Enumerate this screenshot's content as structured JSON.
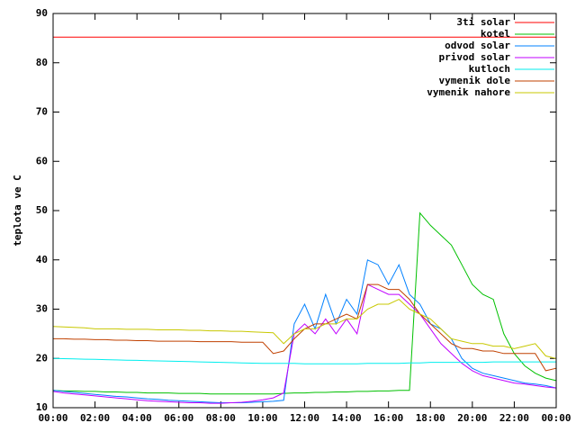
{
  "chart_data": {
    "type": "line",
    "ylabel": "teplota ve C",
    "ylim": [
      10,
      90
    ],
    "yticks": [
      10,
      20,
      30,
      40,
      50,
      60,
      70,
      80,
      90
    ],
    "xlim": [
      0,
      24
    ],
    "xticks": [
      {
        "value": 0,
        "label": "00:00"
      },
      {
        "value": 2,
        "label": "02:00"
      },
      {
        "value": 4,
        "label": "04:00"
      },
      {
        "value": 6,
        "label": "06:00"
      },
      {
        "value": 8,
        "label": "08:00"
      },
      {
        "value": 10,
        "label": "10:00"
      },
      {
        "value": 12,
        "label": "12:00"
      },
      {
        "value": 14,
        "label": "14:00"
      },
      {
        "value": 16,
        "label": "16:00"
      },
      {
        "value": 18,
        "label": "18:00"
      },
      {
        "value": 20,
        "label": "20:00"
      },
      {
        "value": 22,
        "label": "22:00"
      },
      {
        "value": 24,
        "label": "00:00"
      }
    ],
    "legend": "top-right",
    "x": [
      0,
      0.5,
      1,
      1.5,
      2,
      2.5,
      3,
      3.5,
      4,
      4.5,
      5,
      5.5,
      6,
      6.5,
      7,
      7.5,
      8,
      8.5,
      9,
      9.5,
      10,
      10.5,
      11,
      11.5,
      12,
      12.5,
      13,
      13.5,
      14,
      14.5,
      15,
      15.5,
      16,
      16.5,
      17,
      17.5,
      18,
      18.5,
      19,
      19.5,
      20,
      20.5,
      21,
      21.5,
      22,
      22.5,
      23,
      23.5,
      24
    ],
    "series": [
      {
        "name": "3ti solar",
        "color": "#ff0000",
        "values": [
          85.2,
          85.2,
          85.2,
          85.2,
          85.2,
          85.2,
          85.2,
          85.2,
          85.2,
          85.2,
          85.2,
          85.2,
          85.2,
          85.2,
          85.2,
          85.2,
          85.2,
          85.2,
          85.2,
          85.2,
          85.2,
          85.2,
          85.2,
          85.2,
          85.2,
          85.2,
          85.2,
          85.2,
          85.2,
          85.2,
          85.2,
          85.2,
          85.2,
          85.2,
          85.2,
          85.2,
          85.2,
          85.2,
          85.2,
          85.2,
          85.2,
          85.2,
          85.2,
          85.2,
          85.2,
          85.2,
          85.2,
          85.2,
          85.2
        ]
      },
      {
        "name": "kotel",
        "color": "#00c000",
        "values": [
          13.5,
          13.4,
          13.4,
          13.3,
          13.3,
          13.2,
          13.2,
          13.1,
          13.1,
          13.0,
          13.0,
          13.0,
          12.9,
          12.9,
          12.9,
          12.8,
          12.8,
          12.8,
          12.8,
          12.8,
          12.8,
          12.8,
          12.9,
          13.0,
          13.0,
          13.1,
          13.1,
          13.2,
          13.2,
          13.3,
          13.3,
          13.4,
          13.4,
          13.5,
          13.5,
          49.5,
          47,
          45,
          43,
          39,
          35,
          33,
          32,
          25,
          21,
          18.5,
          17,
          16,
          15.5
        ]
      },
      {
        "name": "odvod solar",
        "color": "#0080ff",
        "values": [
          13.5,
          13.3,
          13.1,
          12.9,
          12.7,
          12.5,
          12.3,
          12.2,
          12.0,
          11.8,
          11.7,
          11.5,
          11.4,
          11.3,
          11.2,
          11.1,
          11.0,
          11.0,
          11.0,
          11.1,
          11.2,
          11.3,
          11.5,
          27,
          31,
          26,
          33,
          27,
          32,
          29,
          40,
          39,
          35,
          39,
          33,
          31,
          27,
          26,
          24,
          20,
          18,
          17,
          16.5,
          16,
          15.5,
          15,
          14.8,
          14.5,
          14
        ]
      },
      {
        "name": "privod solar",
        "color": "#c000ff",
        "values": [
          13.3,
          13.0,
          12.8,
          12.6,
          12.4,
          12.2,
          12.0,
          11.8,
          11.6,
          11.4,
          11.3,
          11.2,
          11.1,
          11.0,
          11.0,
          10.9,
          10.9,
          11.0,
          11.1,
          11.3,
          11.6,
          12.0,
          13.0,
          25,
          27,
          25,
          28,
          25,
          28,
          25,
          35,
          34,
          33,
          33,
          31,
          29,
          26,
          23,
          21,
          19,
          17.5,
          16.5,
          16,
          15.5,
          15,
          14.8,
          14.5,
          14.2,
          14
        ]
      },
      {
        "name": "kutloch",
        "color": "#00eeee",
        "values": [
          20.0,
          19.95,
          19.9,
          19.85,
          19.8,
          19.75,
          19.7,
          19.65,
          19.6,
          19.55,
          19.5,
          19.45,
          19.4,
          19.35,
          19.3,
          19.25,
          19.2,
          19.15,
          19.1,
          19.05,
          19.0,
          19.0,
          19.0,
          19.0,
          18.9,
          18.9,
          18.9,
          18.9,
          18.9,
          18.9,
          19.0,
          19.0,
          19.0,
          19.0,
          19.1,
          19.1,
          19.2,
          19.2,
          19.2,
          19.2,
          19.2,
          19.2,
          19.3,
          19.3,
          19.3,
          19.3,
          19.3,
          19.3,
          19.3
        ]
      },
      {
        "name": "vymenik dole",
        "color": "#c04000",
        "values": [
          24.0,
          24.0,
          23.9,
          23.9,
          23.8,
          23.8,
          23.7,
          23.7,
          23.6,
          23.6,
          23.5,
          23.5,
          23.5,
          23.5,
          23.4,
          23.4,
          23.4,
          23.4,
          23.3,
          23.3,
          23.3,
          21.0,
          21.5,
          24,
          26,
          27,
          27,
          28,
          29,
          28,
          35,
          35,
          34,
          34,
          32,
          29,
          27,
          25,
          23,
          22,
          22,
          21.5,
          21.5,
          21,
          21,
          21,
          21,
          17.5,
          18
        ]
      },
      {
        "name": "vymenik nahore",
        "color": "#c8c800",
        "values": [
          26.5,
          26.4,
          26.3,
          26.2,
          26.0,
          26.0,
          26.0,
          25.9,
          25.9,
          25.9,
          25.8,
          25.8,
          25.8,
          25.7,
          25.7,
          25.6,
          25.6,
          25.5,
          25.5,
          25.4,
          25.3,
          25.2,
          23,
          25,
          26,
          26,
          27,
          27,
          28,
          28,
          30,
          31,
          31,
          32,
          30,
          29,
          28,
          26,
          24,
          23.5,
          23,
          23,
          22.5,
          22.5,
          22,
          22.5,
          23,
          20.5,
          20
        ]
      }
    ]
  }
}
